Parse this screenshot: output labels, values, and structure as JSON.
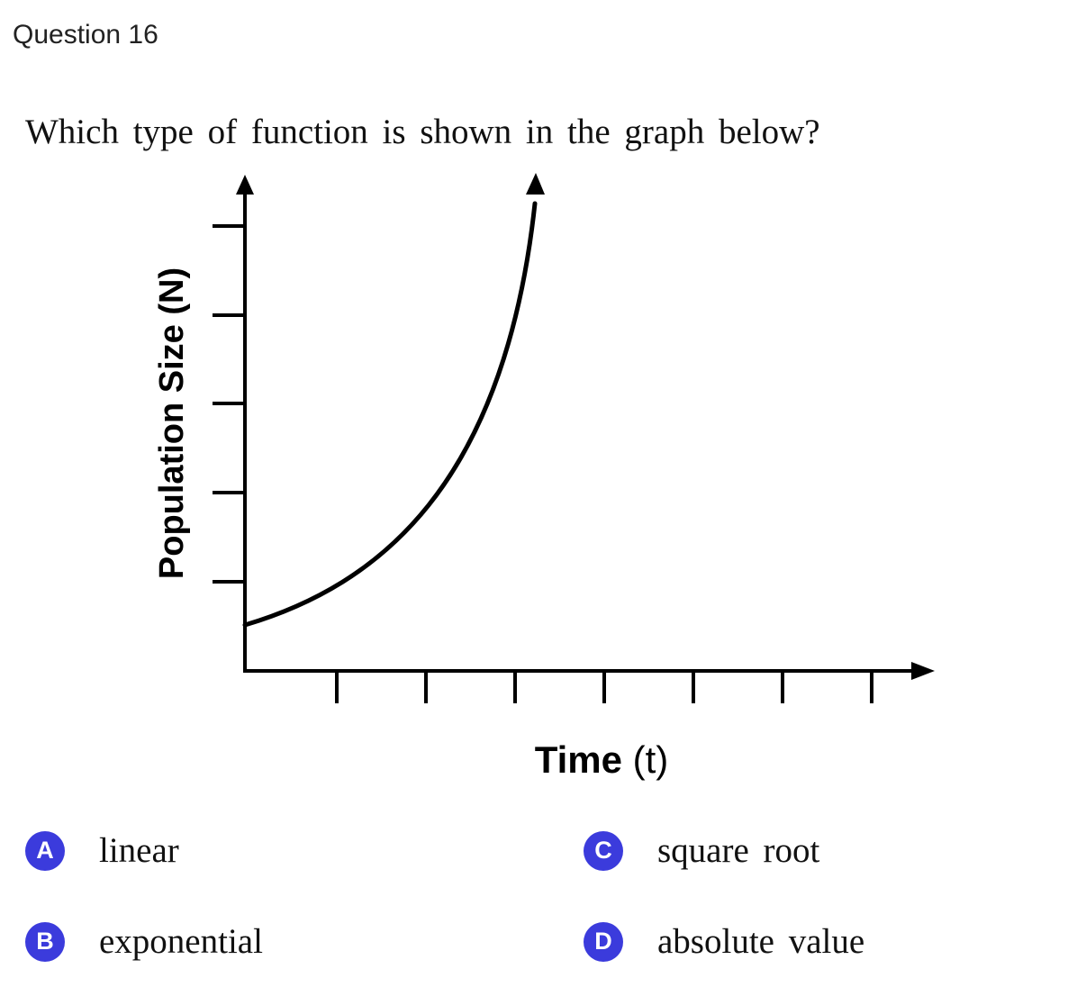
{
  "question": {
    "header": "Question 16",
    "prompt": "Which type of function is shown in the graph below?"
  },
  "graph": {
    "y_axis_label": "Population Size (N)",
    "x_axis_label_main": "Time",
    "x_axis_label_var": "(t)",
    "y_tick_count": 5,
    "x_tick_count": 7,
    "curve": "exponential growth curve"
  },
  "options": [
    {
      "letter": "A",
      "text": "linear"
    },
    {
      "letter": "B",
      "text": "exponential"
    },
    {
      "letter": "C",
      "text": "square root"
    },
    {
      "letter": "D",
      "text": "absolute value"
    }
  ],
  "colors": {
    "badge": "#3b3bdc",
    "text": "#111111",
    "header": "#222222"
  }
}
